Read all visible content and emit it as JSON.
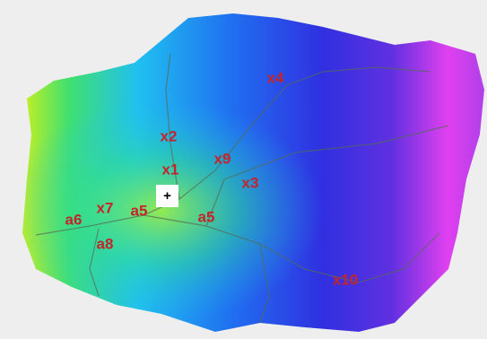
{
  "labels": [
    {
      "text": "x4"
    },
    {
      "text": "x2"
    },
    {
      "text": "x1"
    },
    {
      "text": "x9"
    },
    {
      "text": "x3"
    },
    {
      "text": "a6"
    },
    {
      "text": "x7"
    },
    {
      "text": "a5"
    },
    {
      "text": "a5"
    },
    {
      "text": "a8"
    },
    {
      "text": "x10"
    }
  ],
  "marker": "+"
}
